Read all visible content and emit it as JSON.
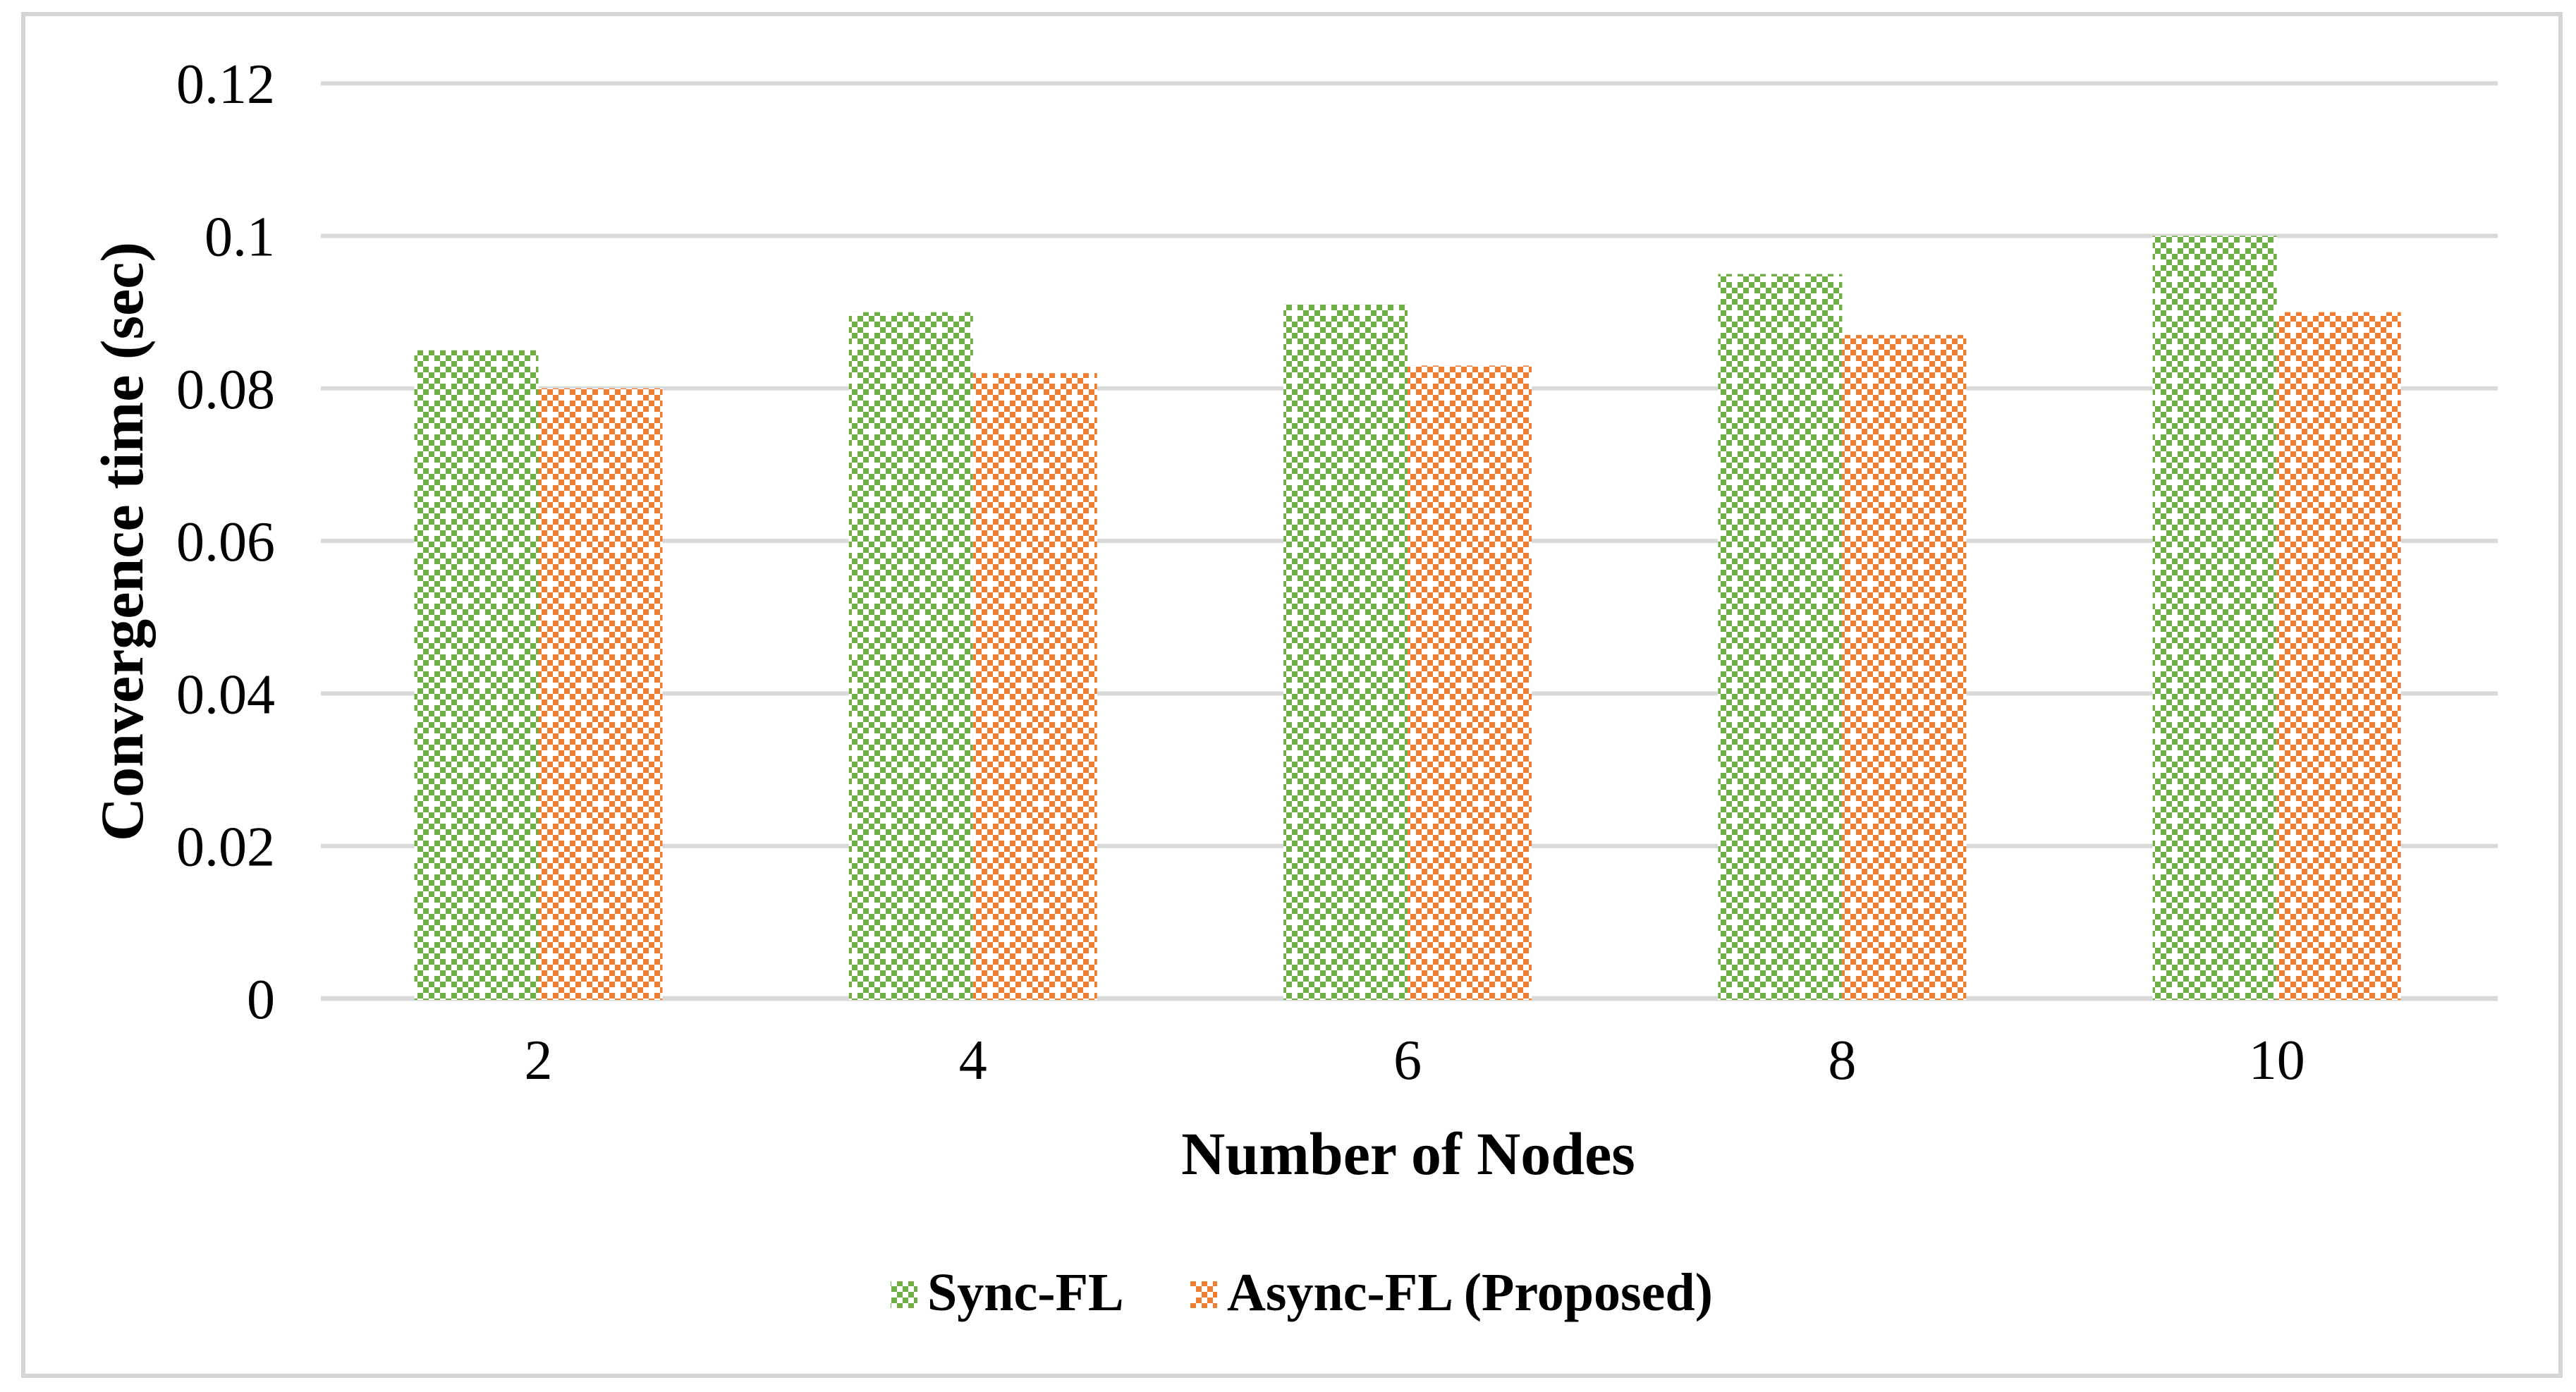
{
  "figure": {
    "background": "#FFFFFF",
    "border_color": "#D5D5D5"
  },
  "chart_data": {
    "type": "bar",
    "title": "",
    "xlabel": "Number of Nodes",
    "ylabel": "Convergence time (sec)",
    "categories": [
      "2",
      "4",
      "6",
      "8",
      "10"
    ],
    "series": [
      {
        "name": "Sync-FL",
        "color": "#70AD47",
        "pattern": "checker-with-white-diamond-dots",
        "values": [
          0.085,
          0.09,
          0.091,
          0.095,
          0.1
        ]
      },
      {
        "name": "Async-FL (Proposed)",
        "color": "#ED7D31",
        "pattern": "checker-with-white-diamond-dots",
        "values": [
          0.08,
          0.082,
          0.083,
          0.087,
          0.09
        ]
      }
    ],
    "ylim": [
      0,
      0.12
    ],
    "yticks": [
      0,
      0.02,
      0.04,
      0.06,
      0.08,
      0.1,
      0.12
    ],
    "ytick_labels": [
      "0",
      "0.02",
      "0.04",
      "0.06",
      "0.08",
      "0.1",
      "0.12"
    ],
    "grid": "horizontal",
    "gridline_color": "#D9D9D9",
    "legend_position": "bottom",
    "text_color": "#000000",
    "bar_background": "#FFFFFF"
  }
}
